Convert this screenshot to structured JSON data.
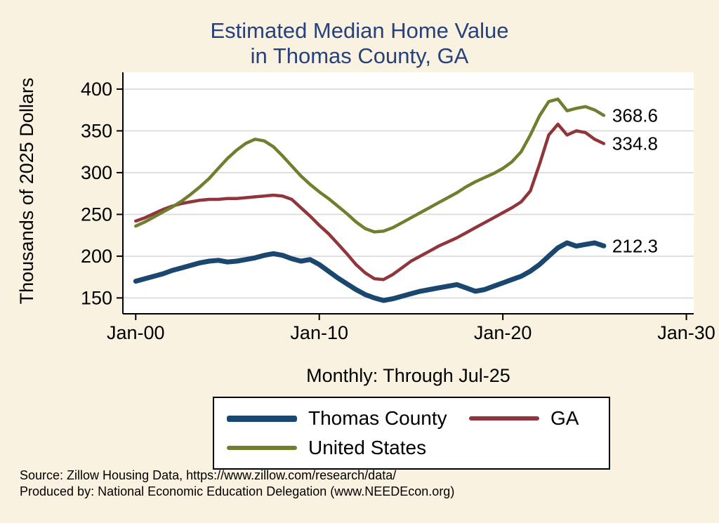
{
  "title": {
    "line1": "Estimated Median Home Value",
    "line2": "in Thomas County, GA"
  },
  "axes": {
    "y_label": "Thousands of 2025 Dollars",
    "x_note": "Monthly: Through Jul-25"
  },
  "footer": {
    "line1": "Source: Zillow Housing Data, https://www.zillow.com/research/data/",
    "line2": "Produced by: National Economic Education Delegation (www.NEEDEcon.org)"
  },
  "colors": {
    "page_background": "#f9f2e0",
    "plot_background": "#ffffff",
    "title_navy": "#26417c",
    "gridline": "#d9d9d9",
    "axis": "#000000"
  },
  "chart_data": {
    "type": "line",
    "title": "Estimated Median Home Value in Thomas County, GA",
    "subtitle": "Monthly: Through Jul-25",
    "xlabel": "",
    "ylabel": "Thousands of 2025 Dollars",
    "x_unit": "decimal_year_monthly",
    "xlim": [
      1999.3,
      2030.4
    ],
    "ylim": [
      131,
      410
    ],
    "grid": "horizontal",
    "legend_position": "bottom",
    "y_ticks": [
      150,
      200,
      250,
      300,
      350,
      400
    ],
    "x_ticks": [
      {
        "value": 2000,
        "label": "Jan-00"
      },
      {
        "value": 2010,
        "label": "Jan-10"
      },
      {
        "value": 2020,
        "label": "Jan-20"
      },
      {
        "value": 2030,
        "label": "Jan-30"
      }
    ],
    "x": [
      2000,
      2000.5,
      2001,
      2001.5,
      2002,
      2002.5,
      2003,
      2003.5,
      2004,
      2004.5,
      2005,
      2005.5,
      2006,
      2006.5,
      2007,
      2007.5,
      2008,
      2008.5,
      2009,
      2009.5,
      2010,
      2010.5,
      2011,
      2011.5,
      2012,
      2012.5,
      2013,
      2013.5,
      2014,
      2014.5,
      2015,
      2015.5,
      2016,
      2016.5,
      2017,
      2017.5,
      2018,
      2018.5,
      2019,
      2019.5,
      2020,
      2020.5,
      2021,
      2021.5,
      2022,
      2022.5,
      2023,
      2023.5,
      2024,
      2024.5,
      2025,
      2025.5
    ],
    "series": [
      {
        "name": "Thomas County",
        "color": "#1a476f",
        "line_width": 7,
        "end_label": "212.3",
        "values": [
          170,
          173,
          176,
          179,
          183,
          186,
          189,
          192,
          194,
          195,
          193,
          194,
          196,
          198,
          201,
          203,
          201,
          197,
          194,
          196,
          190,
          182,
          174,
          167,
          160,
          154,
          150,
          147,
          149,
          152,
          155,
          158,
          160,
          162,
          164,
          166,
          162,
          158,
          160,
          164,
          168,
          172,
          176,
          182,
          190,
          200,
          210,
          216,
          212,
          214,
          216,
          212.3
        ]
      },
      {
        "name": "GA",
        "color": "#90353b",
        "line_width": 4.5,
        "end_label": "334.8",
        "values": [
          242,
          246,
          251,
          256,
          260,
          263,
          265,
          267,
          268,
          268,
          269,
          269,
          270,
          271,
          272,
          273,
          272,
          268,
          258,
          248,
          237,
          227,
          215,
          203,
          190,
          180,
          173,
          172,
          178,
          186,
          194,
          200,
          206,
          212,
          217,
          222,
          228,
          234,
          240,
          246,
          252,
          258,
          265,
          278,
          310,
          345,
          358,
          345,
          350,
          348,
          340,
          334.8
        ]
      },
      {
        "name": "United States",
        "color": "#6e7f2e",
        "line_width": 4.5,
        "end_label": "368.6",
        "values": [
          236,
          241,
          247,
          253,
          259,
          266,
          274,
          283,
          293,
          305,
          317,
          327,
          335,
          340,
          338,
          331,
          320,
          308,
          296,
          286,
          277,
          269,
          260,
          251,
          241,
          233,
          229,
          230,
          234,
          240,
          246,
          252,
          258,
          264,
          270,
          276,
          283,
          289,
          294,
          299,
          305,
          313,
          325,
          345,
          368,
          385,
          388,
          374,
          377,
          379,
          375,
          368.6
        ]
      }
    ]
  }
}
